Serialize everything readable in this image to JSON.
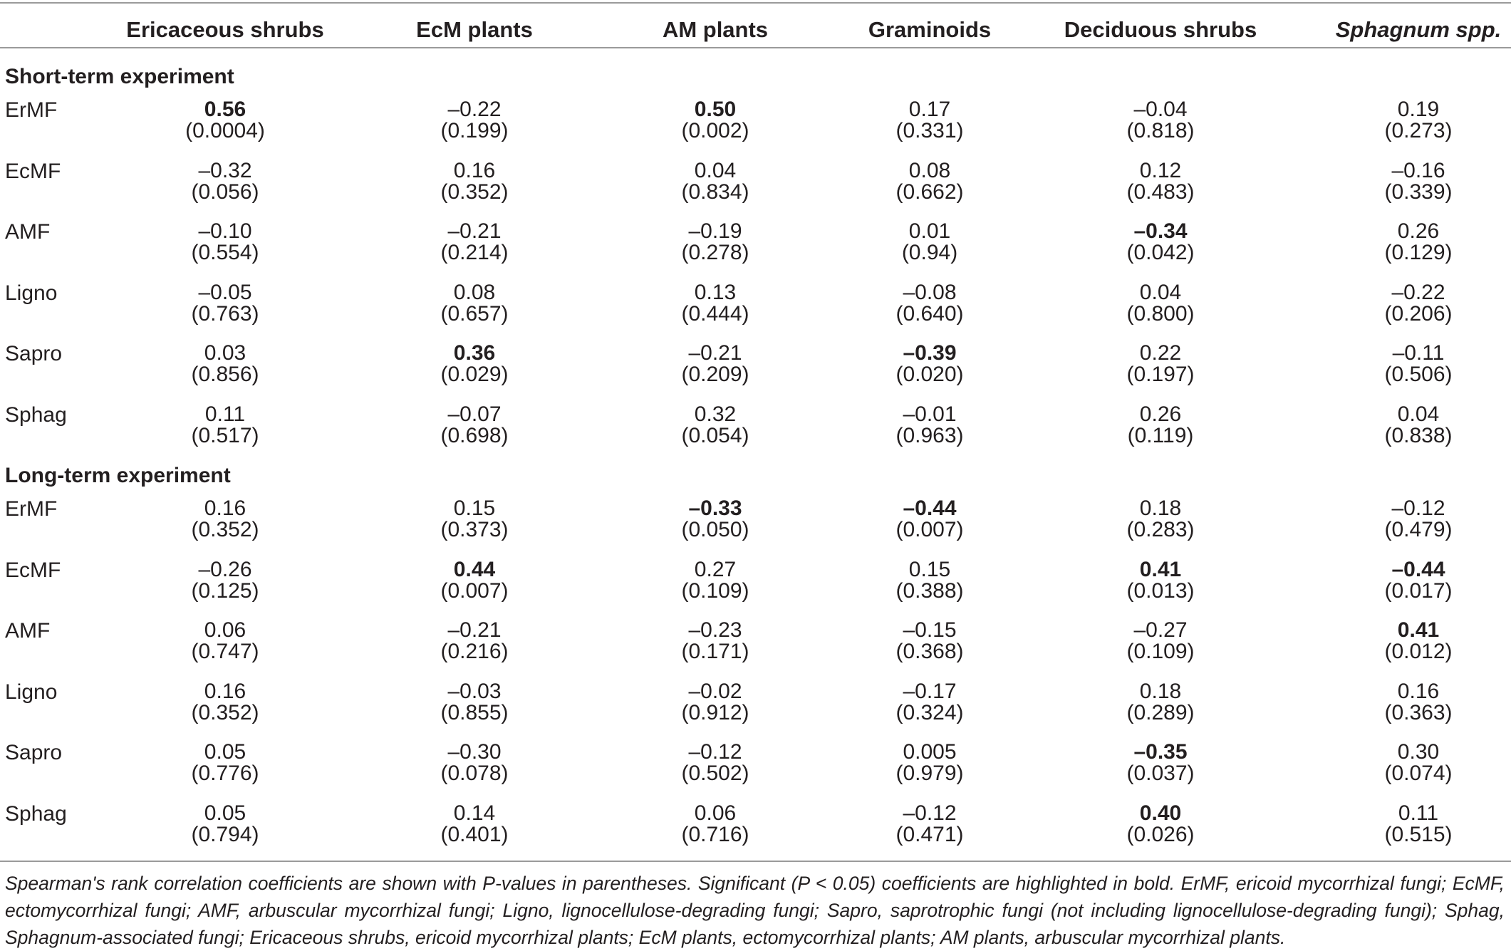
{
  "table": {
    "columns": [
      {
        "label": "Ericaceous shrubs",
        "italic": false
      },
      {
        "label": "EcM plants",
        "italic": false
      },
      {
        "label": "AM plants",
        "italic": false
      },
      {
        "label": "Graminoids",
        "italic": false
      },
      {
        "label": "Deciduous shrubs",
        "italic": false
      },
      {
        "label": "Sphagnum spp.",
        "italic": true
      }
    ],
    "sections": [
      {
        "title": "Short-term experiment",
        "rows": [
          {
            "label": "ErMF",
            "cells": [
              {
                "coef": "0.56",
                "p": "(0.0004)",
                "bold": true
              },
              {
                "coef": "–0.22",
                "p": "(0.199)",
                "bold": false
              },
              {
                "coef": "0.50",
                "p": "(0.002)",
                "bold": true
              },
              {
                "coef": "0.17",
                "p": "(0.331)",
                "bold": false
              },
              {
                "coef": "–0.04",
                "p": "(0.818)",
                "bold": false
              },
              {
                "coef": "0.19",
                "p": "(0.273)",
                "bold": false
              }
            ]
          },
          {
            "label": "EcMF",
            "cells": [
              {
                "coef": "–0.32",
                "p": "(0.056)",
                "bold": false
              },
              {
                "coef": "0.16",
                "p": "(0.352)",
                "bold": false
              },
              {
                "coef": "0.04",
                "p": "(0.834)",
                "bold": false
              },
              {
                "coef": "0.08",
                "p": "(0.662)",
                "bold": false
              },
              {
                "coef": "0.12",
                "p": "(0.483)",
                "bold": false
              },
              {
                "coef": "–0.16",
                "p": "(0.339)",
                "bold": false
              }
            ]
          },
          {
            "label": "AMF",
            "cells": [
              {
                "coef": "–0.10",
                "p": "(0.554)",
                "bold": false
              },
              {
                "coef": "–0.21",
                "p": "(0.214)",
                "bold": false
              },
              {
                "coef": "–0.19",
                "p": "(0.278)",
                "bold": false
              },
              {
                "coef": "0.01",
                "p": "(0.94)",
                "bold": false
              },
              {
                "coef": "–0.34",
                "p": "(0.042)",
                "bold": true
              },
              {
                "coef": "0.26",
                "p": "(0.129)",
                "bold": false
              }
            ]
          },
          {
            "label": "Ligno",
            "cells": [
              {
                "coef": "–0.05",
                "p": "(0.763)",
                "bold": false
              },
              {
                "coef": "0.08",
                "p": "(0.657)",
                "bold": false
              },
              {
                "coef": "0.13",
                "p": "(0.444)",
                "bold": false
              },
              {
                "coef": "–0.08",
                "p": "(0.640)",
                "bold": false
              },
              {
                "coef": "0.04",
                "p": "(0.800)",
                "bold": false
              },
              {
                "coef": "–0.22",
                "p": "(0.206)",
                "bold": false
              }
            ]
          },
          {
            "label": "Sapro",
            "cells": [
              {
                "coef": "0.03",
                "p": "(0.856)",
                "bold": false
              },
              {
                "coef": "0.36",
                "p": "(0.029)",
                "bold": true
              },
              {
                "coef": "–0.21",
                "p": "(0.209)",
                "bold": false
              },
              {
                "coef": "–0.39",
                "p": "(0.020)",
                "bold": true
              },
              {
                "coef": "0.22",
                "p": "(0.197)",
                "bold": false
              },
              {
                "coef": "–0.11",
                "p": "(0.506)",
                "bold": false
              }
            ]
          },
          {
            "label": "Sphag",
            "cells": [
              {
                "coef": "0.11",
                "p": "(0.517)",
                "bold": false
              },
              {
                "coef": "–0.07",
                "p": "(0.698)",
                "bold": false
              },
              {
                "coef": "0.32",
                "p": "(0.054)",
                "bold": false
              },
              {
                "coef": "–0.01",
                "p": "(0.963)",
                "bold": false
              },
              {
                "coef": "0.26",
                "p": "(0.119)",
                "bold": false
              },
              {
                "coef": "0.04",
                "p": "(0.838)",
                "bold": false
              }
            ]
          }
        ]
      },
      {
        "title": "Long-term experiment",
        "rows": [
          {
            "label": "ErMF",
            "cells": [
              {
                "coef": "0.16",
                "p": "(0.352)",
                "bold": false
              },
              {
                "coef": "0.15",
                "p": "(0.373)",
                "bold": false
              },
              {
                "coef": "–0.33",
                "p": "(0.050)",
                "bold": true
              },
              {
                "coef": "–0.44",
                "p": "(0.007)",
                "bold": true
              },
              {
                "coef": "0.18",
                "p": "(0.283)",
                "bold": false
              },
              {
                "coef": "–0.12",
                "p": "(0.479)",
                "bold": false
              }
            ]
          },
          {
            "label": "EcMF",
            "cells": [
              {
                "coef": "–0.26",
                "p": "(0.125)",
                "bold": false
              },
              {
                "coef": "0.44",
                "p": "(0.007)",
                "bold": true
              },
              {
                "coef": "0.27",
                "p": "(0.109)",
                "bold": false
              },
              {
                "coef": "0.15",
                "p": "(0.388)",
                "bold": false
              },
              {
                "coef": "0.41",
                "p": "(0.013)",
                "bold": true
              },
              {
                "coef": "–0.44",
                "p": "(0.017)",
                "bold": true
              }
            ]
          },
          {
            "label": "AMF",
            "cells": [
              {
                "coef": "0.06",
                "p": "(0.747)",
                "bold": false
              },
              {
                "coef": "–0.21",
                "p": "(0.216)",
                "bold": false
              },
              {
                "coef": "–0.23",
                "p": "(0.171)",
                "bold": false
              },
              {
                "coef": "–0.15",
                "p": "(0.368)",
                "bold": false
              },
              {
                "coef": "–0.27",
                "p": "(0.109)",
                "bold": false
              },
              {
                "coef": "0.41",
                "p": "(0.012)",
                "bold": true
              }
            ]
          },
          {
            "label": "Ligno",
            "cells": [
              {
                "coef": "0.16",
                "p": "(0.352)",
                "bold": false
              },
              {
                "coef": "–0.03",
                "p": "(0.855)",
                "bold": false
              },
              {
                "coef": "–0.02",
                "p": "(0.912)",
                "bold": false
              },
              {
                "coef": "–0.17",
                "p": "(0.324)",
                "bold": false
              },
              {
                "coef": "0.18",
                "p": "(0.289)",
                "bold": false
              },
              {
                "coef": "0.16",
                "p": "(0.363)",
                "bold": false
              }
            ]
          },
          {
            "label": "Sapro",
            "cells": [
              {
                "coef": "0.05",
                "p": "(0.776)",
                "bold": false
              },
              {
                "coef": "–0.30",
                "p": "(0.078)",
                "bold": false
              },
              {
                "coef": "–0.12",
                "p": "(0.502)",
                "bold": false
              },
              {
                "coef": "0.005",
                "p": "(0.979)",
                "bold": false
              },
              {
                "coef": "–0.35",
                "p": "(0.037)",
                "bold": true
              },
              {
                "coef": "0.30",
                "p": "(0.074)",
                "bold": false
              }
            ]
          },
          {
            "label": "Sphag",
            "cells": [
              {
                "coef": "0.05",
                "p": "(0.794)",
                "bold": false
              },
              {
                "coef": "0.14",
                "p": "(0.401)",
                "bold": false
              },
              {
                "coef": "0.06",
                "p": "(0.716)",
                "bold": false
              },
              {
                "coef": "–0.12",
                "p": "(0.471)",
                "bold": false
              },
              {
                "coef": "0.40",
                "p": "(0.026)",
                "bold": true
              },
              {
                "coef": "0.11",
                "p": "(0.515)",
                "bold": false
              }
            ]
          }
        ]
      }
    ],
    "footnote": "Spearman's rank correlation coefficients are shown with P-values in parentheses. Significant (P < 0.05) coefficients are highlighted in bold. ErMF, ericoid mycorrhizal fungi; EcMF, ectomycorrhizal fungi; AMF, arbuscular mycorrhizal fungi; Ligno, lignocellulose-degrading fungi; Sapro, saprotrophic fungi (not including lignocellulose-degrading fungi); Sphag, Sphagnum-associated fungi; Ericaceous shrubs, ericoid mycorrhizal plants; EcM plants, ectomycorrhizal plants; AM plants, arbuscular mycorrhizal plants."
  }
}
